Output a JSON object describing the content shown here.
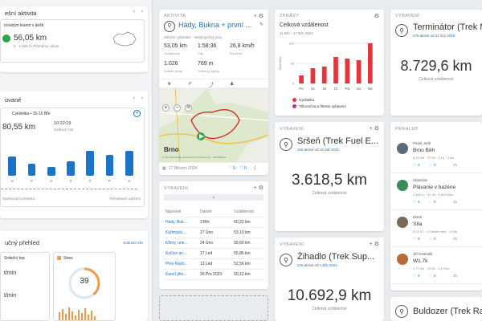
{
  "left": {
    "activity_title": "ešní aktivita",
    "activity_sub": "rovským lesem v dešti",
    "activity_dist": "56,05 km",
    "activity_meta": "0 · 1.033 m Průměrný výkon",
    "planned_title": "ované",
    "planned_sub": "Cyklistika • 15-16 Bře",
    "planned_dist": "80,55 km",
    "planned_time": "10:22:19",
    "planned_time_label": "Celkový čas",
    "planned_days": [
      "N",
      "P",
      "Ú",
      "S",
      "Č",
      "P",
      "S"
    ],
    "planned_bars": [
      0.55,
      0.35,
      0.25,
      0.4,
      0.7,
      0.6,
      0.7
    ],
    "week_label_left": "Navrhování tréninku",
    "week_label_right": "Tréninkové zatížení",
    "overview_title": "učný přehled",
    "overview_link": "Zobrazit vše",
    "hr_title": "Srdeční tep",
    "hr_value1": "t/min",
    "hr_value2": "t/min",
    "stress_title": "Stres",
    "stress_value": "39",
    "stress_fraction": 0.39
  },
  "activity": {
    "label": "AKTIVITA",
    "title": "Hády, Bukna + první ...",
    "sub": "Silniční cyklistika · Nebezpečný proj...",
    "stats": [
      {
        "v": "53,05 km",
        "l": "Vzdálenost"
      },
      {
        "v": "1:58:36",
        "l": "Čas"
      },
      {
        "v": "26,8 km/h",
        "l": "Rychlost"
      },
      {
        "v": "1.026",
        "l": "Kalorie (kcal)"
      },
      {
        "v": "769 m",
        "l": "Celkový výstup"
      }
    ],
    "map_city": "Brno",
    "map_credit": "© OpenStreetMap contributors © Garmin Ltd. · MS Affiliates",
    "date": "17 Březen 2024",
    "comments": "0",
    "likes": "0"
  },
  "reports": {
    "label": "ZPRÁVY",
    "title": "Celková vzdálenost",
    "range": "11 Bře - 17 Bře 2024",
    "ylabel": "Kilometry",
    "legend": [
      "Cyklistika",
      "Tělocvična a fitness vybavení"
    ],
    "chart_data": {
      "type": "bar",
      "categories": [
        "Po",
        "Út",
        "St",
        "Čt",
        "Pá",
        "So",
        "Ne"
      ],
      "values": [
        20,
        38,
        42,
        66,
        62,
        58,
        100
      ],
      "ylim": [
        0,
        100
      ],
      "yticks": [
        100,
        50,
        0
      ]
    }
  },
  "gear1": {
    "label": "VYBAVENÍ",
    "title": "Terminátor (Trek Ma",
    "sub": "275 aktivit od 21 Srp 2019",
    "value": "8.729,6 km",
    "vlabel": "Celková vzdálenost"
  },
  "gear2": {
    "label": "VYBAVENÍ",
    "title": "Sršeň (Trek Fuel E...",
    "sub": "108 aktivit od 16 Zář 2021",
    "value": "3.618,5 km",
    "vlabel": "Celková vzdálenost"
  },
  "gear3": {
    "label": "VYBAVENÍ",
    "title": "Žihadlo (Trek Sup...",
    "sub": "245 aktivit od 1 Bře 2021",
    "value": "10.692,9 km",
    "vlabel": "Celková vzdálenost"
  },
  "gear4": {
    "title": "Buldozer (Trek Ra"
  },
  "gear_table": {
    "label": "VYBAVENÍ",
    "headers": [
      "Názvové",
      "Datum",
      "Vzdálenost"
    ],
    "rows": [
      [
        "Hády, Buk...",
        "3 Bře",
        "60,22 km"
      ],
      [
        "Kuřimská ...",
        "27 Úno",
        "53,10 km"
      ],
      [
        "Křtiny, une...",
        "24 Úno",
        "55,60 km"
      ],
      [
        "Kučice an...",
        "17 Led",
        "55,86 km"
      ],
      [
        "Přes Rado...",
        "13 Led",
        "52,56 km"
      ],
      [
        "Kanní jihe...",
        "26 Pro 2023",
        "50,12 km"
      ]
    ]
  },
  "feed": {
    "label": "PŘEHLED",
    "items": [
      {
        "name": "Pavel Jurík",
        "title": "Brno Běh",
        "stats": "5,15 km · 27:53 · 1:13 · 3 km",
        "likes": "0",
        "comments": "0",
        "time": "1h"
      },
      {
        "name": "Stanislav",
        "title": "Plávanie v bazéne",
        "stats": "1.500 m · 47:29 · 1:52/100m",
        "likes": "0",
        "comments": "0",
        "time": "1h"
      },
      {
        "name": "Mirek",
        "title": "Síla",
        "stats": "0:21:27 · 1 Celkem test · 1 Pok",
        "likes": "0",
        "comments": "0",
        "time": "2h"
      },
      {
        "name": "Jiří Doskalík",
        "title": "W1.7k",
        "stats": "1,77 km · 19:51 · 1:17/km",
        "likes": "0",
        "comments": "0",
        "time": "3h"
      }
    ]
  }
}
